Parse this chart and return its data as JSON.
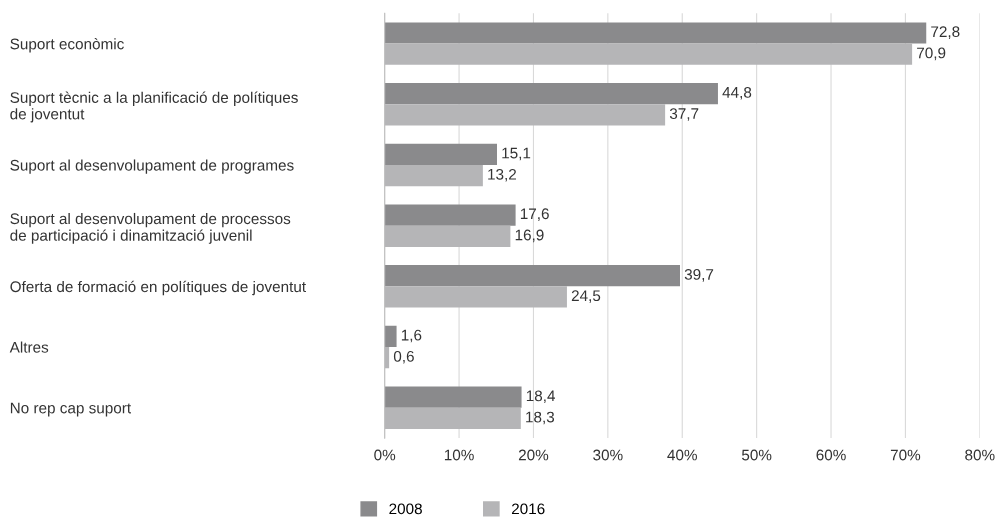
{
  "chart_data": {
    "type": "bar",
    "orientation": "horizontal",
    "categories": [
      "Suport econòmic",
      "Suport tècnic a la planificació de polítiques\nde joventut",
      "Suport al desenvolupament de programes",
      "Suport al desenvolupament de processos\nde participació i dinamització juvenil",
      "Oferta de formació en polítiques de joventut",
      "Altres",
      "No rep cap suport"
    ],
    "series": [
      {
        "name": "2008",
        "color": "#8a8a8c",
        "values": [
          72.8,
          44.8,
          15.1,
          17.6,
          39.7,
          1.6,
          18.4
        ],
        "value_labels": [
          "72,8",
          "44,8",
          "15,1",
          "17,6",
          "39,7",
          "1,6",
          "18,4"
        ]
      },
      {
        "name": "2016",
        "color": "#b5b5b7",
        "values": [
          70.9,
          37.7,
          13.2,
          16.9,
          24.5,
          0.6,
          18.3
        ],
        "value_labels": [
          "70,9",
          "37,7",
          "13,2",
          "16,9",
          "24,5",
          "0,6",
          "18,3"
        ]
      }
    ],
    "xlim": [
      0,
      80
    ],
    "xticks": [
      {
        "value": 0,
        "label": "0%"
      },
      {
        "value": 10,
        "label": "10%"
      },
      {
        "value": 20,
        "label": "20%"
      },
      {
        "value": 30,
        "label": "30%"
      },
      {
        "value": 40,
        "label": "40%"
      },
      {
        "value": 50,
        "label": "50%"
      },
      {
        "value": 60,
        "label": "60%"
      },
      {
        "value": 70,
        "label": "70%"
      },
      {
        "value": 80,
        "label": "80%"
      }
    ],
    "grid": "x",
    "legend": "bottom"
  }
}
